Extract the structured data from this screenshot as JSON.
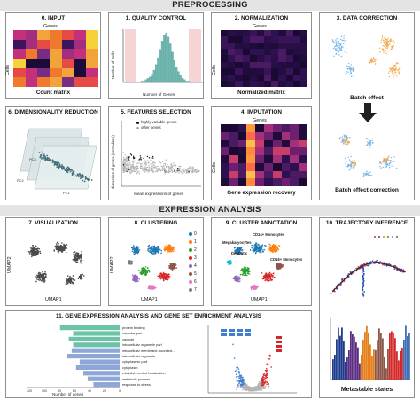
{
  "sections": {
    "preprocessing": "PREPROCESSING",
    "expression": "EXPRESSION ANALYSIS"
  },
  "panels": {
    "input": {
      "title": "0. INPUT",
      "genes": "Genes",
      "cells": "Cells",
      "caption": "Count matrix"
    },
    "qc": {
      "title": "1. QUALITY CONTROL",
      "ylabel": "Number of Cells",
      "xlabel": "Number of Genes",
      "hist": [
        1,
        1,
        2,
        3,
        4,
        6,
        9,
        13,
        18,
        24,
        30,
        34,
        36,
        33,
        28,
        22,
        16,
        11,
        8,
        5,
        3,
        2,
        1,
        1
      ]
    },
    "norm": {
      "title": "2. NORMALIZATION",
      "genes": "Genes",
      "cells": "Cells",
      "caption": "Normalized matrix"
    },
    "correction": {
      "title": "3. DATA CORRECTION",
      "caption1": "Batch effect",
      "caption2": "Batch effect correction"
    },
    "dimred": {
      "title": "6. DIMENSIONALITY REDUCTION",
      "axes": [
        "PC1",
        "PC2",
        "PC3"
      ]
    },
    "features": {
      "title": "5. FEATURES SELECTION",
      "legend": [
        "highly variable genes",
        "other genes"
      ],
      "ylabel": "dispersion of genes (normalized)",
      "xlabel": "mean expressions of genes"
    },
    "imputation": {
      "title": "4. IMPUTATION",
      "genes": "Genes",
      "cells": "Cells",
      "caption": "Gene expression recovery"
    },
    "viz": {
      "title": "7. VISUALIZATION",
      "xlabel": "UMAP1",
      "ylabel": "UMAP2"
    },
    "clust": {
      "title": "8. CLUSTERING",
      "xlabel": "UMAP1",
      "ylabel": "UMAP2",
      "legend": [
        "0",
        "1",
        "2",
        "3",
        "4",
        "5",
        "6",
        "7"
      ],
      "colors": [
        "#1f77b4",
        "#ff7f0e",
        "#2ca02c",
        "#d62728",
        "#9467bd",
        "#8c564b",
        "#e377c2",
        "#7f7f7f"
      ]
    },
    "annot": {
      "title": "9. CLUSTER ANNOTATION",
      "xlabel": "UMAP1",
      "labels": [
        "CD14+ Monocytes",
        "Megakaryocytes",
        "Dendritic",
        "CD16+ Monocytes"
      ]
    },
    "traj": {
      "title": "10. TRAJECTORY INFERENCE",
      "caption": "Metastable states"
    },
    "gsea": {
      "title": "11. GENE EXPRESSION ANALYSIS AND GENE SET ENRICHMENT ANALYSIS",
      "terms": [
        "protein binding",
        "vacuolar part",
        "vacuole",
        "intracellular organelle part",
        "intracellular membrane-bounded...",
        "intracellular organelle",
        "cytoplasmic part",
        "cytoplasm",
        "establishment of localization",
        "metabolic process",
        "response to stress"
      ],
      "bars": [
        82,
        64,
        70,
        64,
        66,
        72,
        55,
        60,
        50,
        44,
        36
      ],
      "xticks": [
        "120",
        "100",
        "80",
        "60",
        "40",
        "20",
        "0"
      ],
      "xlabel": "Number of genes"
    }
  }
}
